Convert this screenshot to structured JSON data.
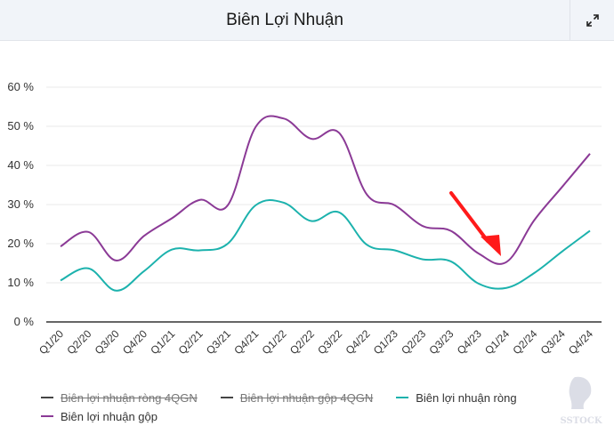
{
  "header": {
    "title": "Biên Lợi Nhuận",
    "expand_icon": "expand-arrows-icon"
  },
  "colors": {
    "gross": "#8b3a96",
    "net": "#1cb2ad",
    "disabled": "#444444",
    "arrow": "#ff1a1a",
    "grid": "#e8e8e8",
    "axis": "#666666"
  },
  "legend": [
    {
      "label": "Biên lợi nhuận ròng 4QGN",
      "enabled": false
    },
    {
      "label": "Biên lợi nhuận gộp 4QGN",
      "enabled": false
    },
    {
      "label": "Biên lợi nhuận ròng",
      "enabled": true
    },
    {
      "label": "Biên lợi nhuận gộp",
      "enabled": true
    }
  ],
  "watermark": {
    "text": "SSTOCK"
  },
  "chart_data": {
    "type": "line",
    "title": "Biên Lợi Nhuận",
    "xlabel": "",
    "ylabel": "",
    "ylim": [
      0,
      60
    ],
    "yticks": [
      "0 %",
      "10 %",
      "20 %",
      "30 %",
      "40 %",
      "50 %",
      "60 %"
    ],
    "grid": true,
    "legend_position": "bottom",
    "categories": [
      "Q1/20",
      "Q2/20",
      "Q3/20",
      "Q4/20",
      "Q1/21",
      "Q2/21",
      "Q3/21",
      "Q4/21",
      "Q1/22",
      "Q2/22",
      "Q3/22",
      "Q4/22",
      "Q1/23",
      "Q2/23",
      "Q3/23",
      "Q4/23",
      "Q1/24",
      "Q2/24",
      "Q3/24",
      "Q4/24"
    ],
    "series": [
      {
        "name": "Biên lợi nhuận gộp",
        "values": [
          19.3,
          23,
          15.7,
          22,
          26.5,
          31.2,
          29.8,
          49.8,
          52,
          46.8,
          48.3,
          32.5,
          29.8,
          24.5,
          23.3,
          17.5,
          15.3,
          26,
          34.5,
          43
        ]
      },
      {
        "name": "Biên lợi nhuận ròng",
        "values": [
          10.6,
          13.7,
          8,
          13,
          18.5,
          18.3,
          20,
          29.8,
          30.5,
          25.8,
          28,
          19.7,
          18.3,
          16,
          15.5,
          9.8,
          8.7,
          12.5,
          18,
          23.3
        ]
      }
    ],
    "annotations": [
      {
        "type": "arrow",
        "color": "#ff1a1a",
        "points_to": "Q1/24 Biên lợi nhuận gộp minimum"
      }
    ]
  }
}
